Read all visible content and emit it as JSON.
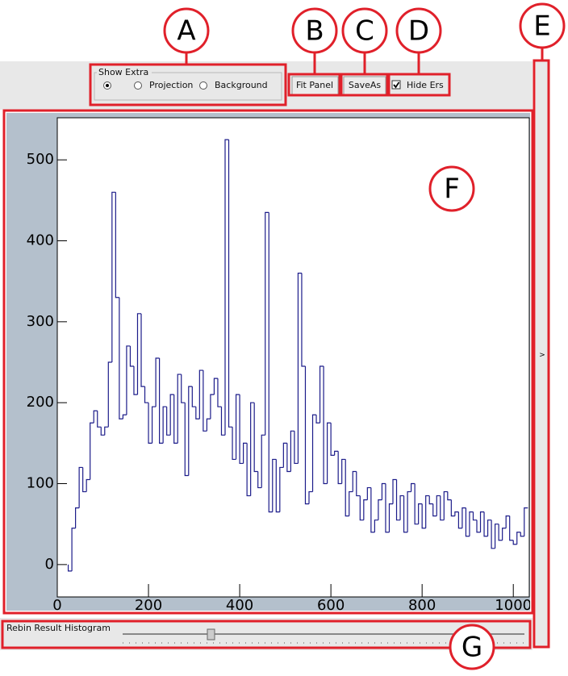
{
  "markers": [
    "A",
    "B",
    "C",
    "D",
    "E",
    "F",
    "G"
  ],
  "controls": {
    "show_extra": {
      "title": "Show Extra",
      "options": [
        null,
        "Projection",
        "Background"
      ],
      "selected": 0
    },
    "fit_panel": "Fit Panel",
    "save_as": "SaveAs",
    "hide_errors": {
      "label": "Hide Ers",
      "checked": true
    },
    "side_toggle": ">",
    "rebin": "Rebin Result Histogram"
  },
  "chart_data": {
    "type": "histogram",
    "color": "#1c1c8a",
    "bins": [
      24,
      32,
      40,
      48,
      56,
      64,
      72,
      80,
      88,
      96,
      104,
      112,
      120,
      128,
      136,
      144,
      152,
      160,
      168,
      176,
      184,
      192,
      200,
      208,
      216,
      224,
      232,
      240,
      248,
      256,
      264,
      272,
      280,
      288,
      296,
      304,
      312,
      320,
      328,
      336,
      344,
      352,
      360,
      368,
      376,
      384,
      392,
      400,
      408,
      416,
      424,
      432,
      440,
      448,
      456,
      464,
      472,
      480,
      488,
      496,
      504,
      512,
      520,
      528,
      536,
      544,
      552,
      560,
      568,
      576,
      584,
      592,
      600,
      608,
      616,
      624,
      632,
      640,
      648,
      656,
      664,
      672,
      680,
      688,
      696,
      704,
      712,
      720,
      728,
      736,
      744,
      752,
      760,
      768,
      776,
      784,
      792,
      800,
      808,
      816,
      824,
      832,
      840,
      848,
      856,
      864,
      872,
      880,
      888,
      896,
      904,
      912,
      920,
      928,
      936,
      944,
      952,
      960,
      968,
      976,
      984,
      992,
      1000,
      1008,
      1016,
      1024,
      1032
    ],
    "values": [
      -8,
      45,
      70,
      120,
      90,
      105,
      175,
      190,
      170,
      160,
      170,
      250,
      460,
      330,
      180,
      185,
      270,
      245,
      210,
      310,
      220,
      200,
      150,
      195,
      255,
      150,
      195,
      160,
      210,
      150,
      235,
      200,
      110,
      220,
      195,
      180,
      240,
      165,
      180,
      210,
      230,
      195,
      160,
      525,
      170,
      130,
      210,
      125,
      150,
      85,
      200,
      115,
      95,
      160,
      435,
      65,
      130,
      65,
      120,
      150,
      115,
      165,
      125,
      360,
      245,
      75,
      90,
      185,
      175,
      245,
      100,
      175,
      135,
      140,
      100,
      130,
      60,
      90,
      115,
      85,
      55,
      80,
      95,
      40,
      55,
      80,
      100,
      40,
      75,
      105,
      55,
      85,
      40,
      90,
      100,
      50,
      75,
      45,
      85,
      75,
      60,
      85,
      55,
      90,
      80,
      60,
      65,
      45,
      70,
      35,
      65,
      55,
      40,
      65,
      35,
      55,
      20,
      50,
      30,
      45,
      60,
      30,
      25,
      40,
      35,
      70
    ],
    "xlim": [
      0,
      1035
    ],
    "ylim": [
      -40,
      552
    ],
    "xticks": [
      0,
      200,
      400,
      600,
      800,
      1000
    ],
    "yticks": [
      0,
      100,
      200,
      300,
      400,
      500
    ]
  }
}
